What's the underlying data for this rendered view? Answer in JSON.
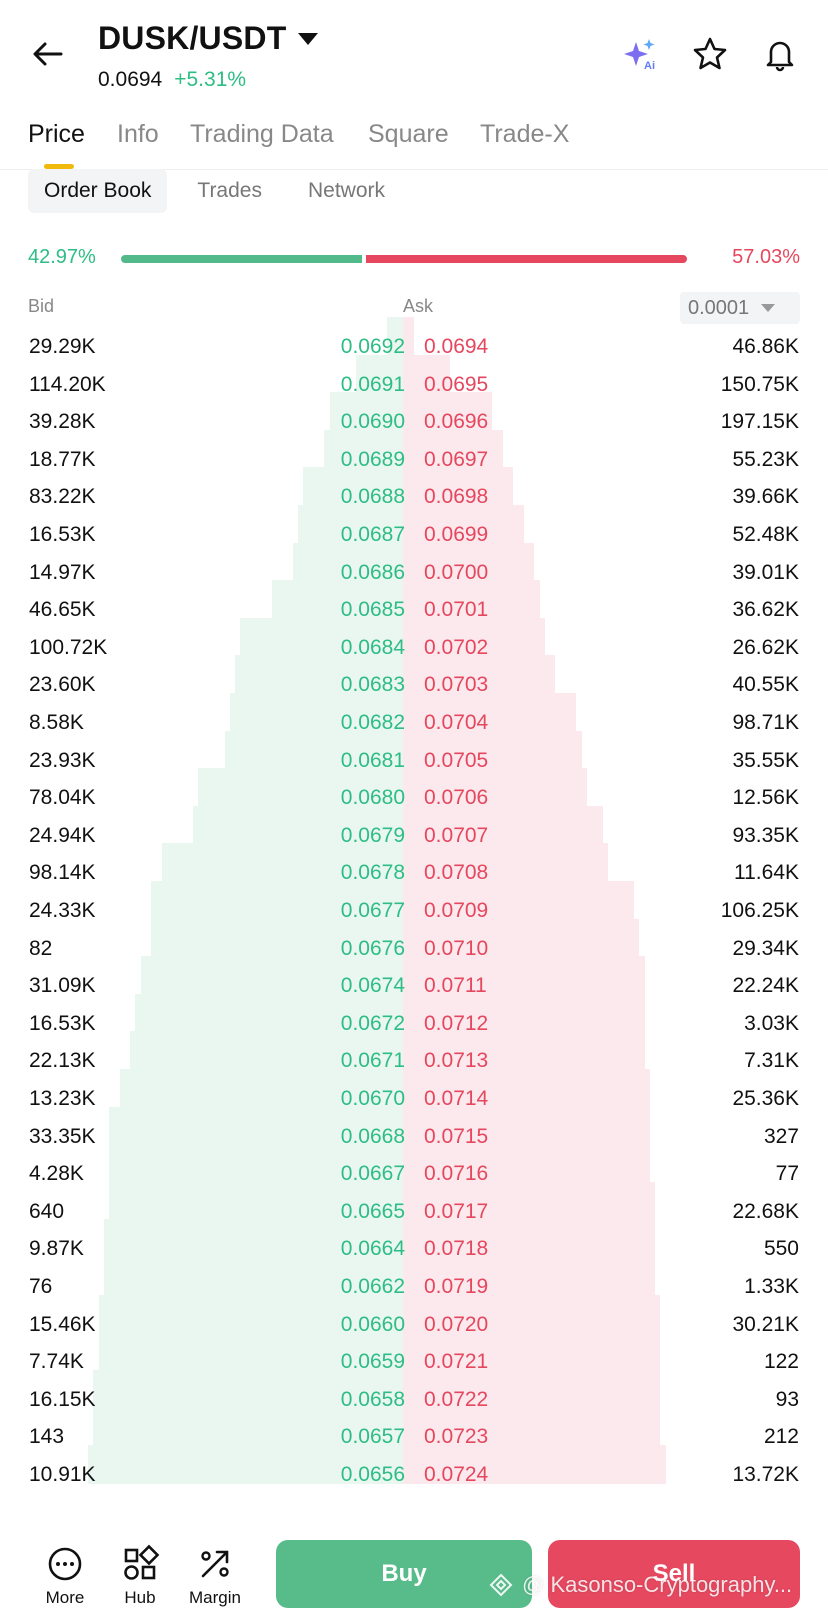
{
  "header": {
    "pair": "DUSK/USDT",
    "price": "0.0694",
    "change": "+5.31%"
  },
  "tabs": [
    {
      "label": "Price",
      "active": true
    },
    {
      "label": "Info"
    },
    {
      "label": "Trading Data"
    },
    {
      "label": "Square"
    },
    {
      "label": "Trade-X"
    }
  ],
  "subtabs": [
    {
      "label": "Order Book",
      "active": true
    },
    {
      "label": "Trades"
    },
    {
      "label": "Network"
    }
  ],
  "ratio": {
    "bid_pct": "42.97%",
    "ask_pct": "57.03%",
    "bid_fraction": 0.4297
  },
  "columns": {
    "bid": "Bid",
    "ask": "Ask",
    "precision": "0.0001"
  },
  "orderbook": [
    {
      "bid_qty": "29.29K",
      "bid_price": "0.0692",
      "ask_price": "0.0694",
      "ask_qty": "46.86K"
    },
    {
      "bid_qty": "114.20K",
      "bid_price": "0.0691",
      "ask_price": "0.0695",
      "ask_qty": "150.75K"
    },
    {
      "bid_qty": "39.28K",
      "bid_price": "0.0690",
      "ask_price": "0.0696",
      "ask_qty": "197.15K"
    },
    {
      "bid_qty": "18.77K",
      "bid_price": "0.0689",
      "ask_price": "0.0697",
      "ask_qty": "55.23K"
    },
    {
      "bid_qty": "83.22K",
      "bid_price": "0.0688",
      "ask_price": "0.0698",
      "ask_qty": "39.66K"
    },
    {
      "bid_qty": "16.53K",
      "bid_price": "0.0687",
      "ask_price": "0.0699",
      "ask_qty": "52.48K"
    },
    {
      "bid_qty": "14.97K",
      "bid_price": "0.0686",
      "ask_price": "0.0700",
      "ask_qty": "39.01K"
    },
    {
      "bid_qty": "46.65K",
      "bid_price": "0.0685",
      "ask_price": "0.0701",
      "ask_qty": "36.62K"
    },
    {
      "bid_qty": "100.72K",
      "bid_price": "0.0684",
      "ask_price": "0.0702",
      "ask_qty": "26.62K"
    },
    {
      "bid_qty": "23.60K",
      "bid_price": "0.0683",
      "ask_price": "0.0703",
      "ask_qty": "40.55K"
    },
    {
      "bid_qty": "8.58K",
      "bid_price": "0.0682",
      "ask_price": "0.0704",
      "ask_qty": "98.71K"
    },
    {
      "bid_qty": "23.93K",
      "bid_price": "0.0681",
      "ask_price": "0.0705",
      "ask_qty": "35.55K"
    },
    {
      "bid_qty": "78.04K",
      "bid_price": "0.0680",
      "ask_price": "0.0706",
      "ask_qty": "12.56K"
    },
    {
      "bid_qty": "24.94K",
      "bid_price": "0.0679",
      "ask_price": "0.0707",
      "ask_qty": "93.35K"
    },
    {
      "bid_qty": "98.14K",
      "bid_price": "0.0678",
      "ask_price": "0.0708",
      "ask_qty": "11.64K"
    },
    {
      "bid_qty": "24.33K",
      "bid_price": "0.0677",
      "ask_price": "0.0709",
      "ask_qty": "106.25K"
    },
    {
      "bid_qty": "82",
      "bid_price": "0.0676",
      "ask_price": "0.0710",
      "ask_qty": "29.34K"
    },
    {
      "bid_qty": "31.09K",
      "bid_price": "0.0674",
      "ask_price": "0.0711",
      "ask_qty": "22.24K"
    },
    {
      "bid_qty": "16.53K",
      "bid_price": "0.0672",
      "ask_price": "0.0712",
      "ask_qty": "3.03K"
    },
    {
      "bid_qty": "22.13K",
      "bid_price": "0.0671",
      "ask_price": "0.0713",
      "ask_qty": "7.31K"
    },
    {
      "bid_qty": "13.23K",
      "bid_price": "0.0670",
      "ask_price": "0.0714",
      "ask_qty": "25.36K"
    },
    {
      "bid_qty": "33.35K",
      "bid_price": "0.0668",
      "ask_price": "0.0715",
      "ask_qty": "327"
    },
    {
      "bid_qty": "4.28K",
      "bid_price": "0.0667",
      "ask_price": "0.0716",
      "ask_qty": "77"
    },
    {
      "bid_qty": "640",
      "bid_price": "0.0665",
      "ask_price": "0.0717",
      "ask_qty": "22.68K"
    },
    {
      "bid_qty": "9.87K",
      "bid_price": "0.0664",
      "ask_price": "0.0718",
      "ask_qty": "550"
    },
    {
      "bid_qty": "76",
      "bid_price": "0.0662",
      "ask_price": "0.0719",
      "ask_qty": "1.33K"
    },
    {
      "bid_qty": "15.46K",
      "bid_price": "0.0660",
      "ask_price": "0.0720",
      "ask_qty": "30.21K"
    },
    {
      "bid_qty": "7.74K",
      "bid_price": "0.0659",
      "ask_price": "0.0721",
      "ask_qty": "122"
    },
    {
      "bid_qty": "16.15K",
      "bid_price": "0.0658",
      "ask_price": "0.0722",
      "ask_qty": "93"
    },
    {
      "bid_qty": "143",
      "bid_price": "0.0657",
      "ask_price": "0.0723",
      "ask_qty": "212"
    },
    {
      "bid_qty": "10.91K",
      "bid_price": "0.0656",
      "ask_price": "0.0724",
      "ask_qty": "13.72K"
    }
  ],
  "depth": {
    "bid_cumulative_fraction": [
      0.03,
      0.09,
      0.14,
      0.15,
      0.19,
      0.2,
      0.21,
      0.25,
      0.31,
      0.32,
      0.33,
      0.34,
      0.39,
      0.4,
      0.46,
      0.48,
      0.48,
      0.5,
      0.51,
      0.52,
      0.54,
      0.56,
      0.56,
      0.56,
      0.57,
      0.57,
      0.58,
      0.58,
      0.59,
      0.59,
      0.6
    ],
    "ask_cumulative_fraction": [
      0.02,
      0.09,
      0.17,
      0.19,
      0.21,
      0.23,
      0.25,
      0.26,
      0.27,
      0.29,
      0.33,
      0.34,
      0.35,
      0.38,
      0.39,
      0.44,
      0.45,
      0.46,
      0.46,
      0.46,
      0.47,
      0.47,
      0.47,
      0.48,
      0.48,
      0.48,
      0.49,
      0.49,
      0.49,
      0.49,
      0.5
    ]
  },
  "bottom": {
    "items": [
      {
        "label": "More",
        "icon": "more-icon"
      },
      {
        "label": "Hub",
        "icon": "hub-icon"
      },
      {
        "label": "Margin",
        "icon": "margin-icon"
      }
    ],
    "buy": "Buy",
    "sell": "Sell"
  },
  "watermark": "@ Kasonso-Cryptography...",
  "colors": {
    "green": "#2ebd85",
    "red": "#e5475f",
    "accent": "#f0b90b"
  }
}
